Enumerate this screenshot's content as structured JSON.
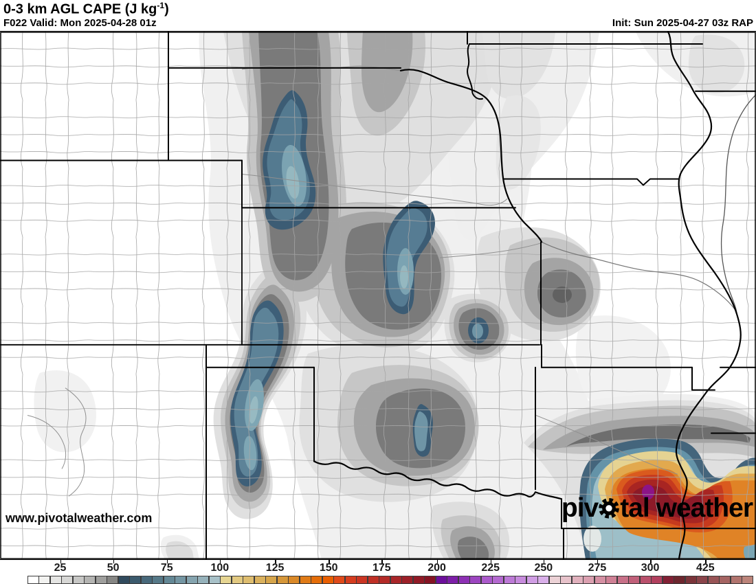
{
  "header": {
    "title_prefix": "0-3 km AGL CAPE (J kg",
    "title_sup": "-1",
    "title_suffix": ")",
    "valid": "F022 Valid: Mon 2025-04-28 01z",
    "init": "Init: Sun 2025-04-27 03z RAP"
  },
  "watermark": "www.pivotalweather.com",
  "logo": {
    "part1": "piv",
    "gear_icon": "gear",
    "part2": "tal weather"
  },
  "colorbar": {
    "ticks": [
      {
        "label": "25",
        "pos": 4.5
      },
      {
        "label": "50",
        "pos": 11.8
      },
      {
        "label": "75",
        "pos": 19.2
      },
      {
        "label": "100",
        "pos": 26.5
      },
      {
        "label": "125",
        "pos": 34.1
      },
      {
        "label": "150",
        "pos": 41.5
      },
      {
        "label": "175",
        "pos": 48.8
      },
      {
        "label": "200",
        "pos": 56.4
      },
      {
        "label": "225",
        "pos": 63.8
      },
      {
        "label": "250",
        "pos": 71.1
      },
      {
        "label": "275",
        "pos": 78.5
      },
      {
        "label": "300",
        "pos": 85.8
      },
      {
        "label": "425",
        "pos": 93.4
      }
    ],
    "cells": [
      "#ffffff",
      "#f2f2f0",
      "#e5e5e3",
      "#d7d7d5",
      "#c7c7c5",
      "#b4b4b2",
      "#9f9f9d",
      "#868684",
      "#314a5d",
      "#3b5a6d",
      "#48697b",
      "#567988",
      "#648896",
      "#7496a3",
      "#85a4af",
      "#96b2bb",
      "#a8c1c8",
      "#e6d592",
      "#e2c981",
      "#debd6f",
      "#dab15d",
      "#d6a54b",
      "#d69739",
      "#da8928",
      "#e07b17",
      "#e56d09",
      "#e95f02",
      "#e04a1a",
      "#d63d1f",
      "#cb3523",
      "#c03026",
      "#b42b28",
      "#a92629",
      "#9d2028",
      "#911a26",
      "#851323",
      "#6d0f9c",
      "#7d1ea8",
      "#8d30b4",
      "#9c45c0",
      "#ab5acb",
      "#b469d0",
      "#bd7ad7",
      "#c78bdd",
      "#d09de4",
      "#d9afe9",
      "#ecd2d6",
      "#e7c2ca",
      "#e1b1bd",
      "#dba0b0",
      "#d590a3",
      "#cf8095",
      "#c87088",
      "#c1607a",
      "#ba506c",
      "#b2405e",
      "#822034",
      "#6d262e",
      "#7b343a",
      "#8a444a",
      "#985456",
      "#a56462",
      "#b1746e",
      "#bc847a"
    ]
  },
  "colors": {
    "state_border": "#000000",
    "county_line": "#a5a5a5",
    "background": "#ffffff"
  }
}
